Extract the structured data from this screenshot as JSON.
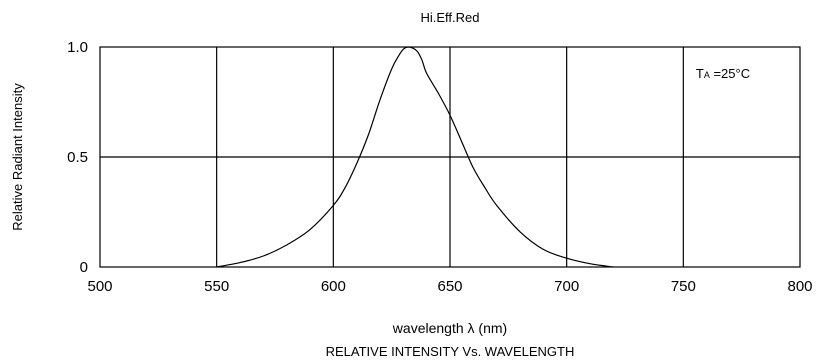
{
  "chart_data": {
    "type": "line",
    "title": "Hi.Eff.Red",
    "xlabel": "wavelength λ (nm)",
    "ylabel": "Relative Radiant Intensity",
    "caption": "RELATIVE INTENSITY Vs. WAVELENGTH",
    "annotation": {
      "main": "T",
      "sub": "A",
      "rest": " =25°C"
    },
    "xlim": [
      500,
      800
    ],
    "ylim": [
      0,
      1.0
    ],
    "x_ticks": [
      "500",
      "550",
      "600",
      "650",
      "700",
      "750",
      "800"
    ],
    "y_ticks": [
      {
        "value": 0,
        "label": "0"
      },
      {
        "value": 0.5,
        "label": "0.5"
      },
      {
        "value": 1.0,
        "label": "1.0"
      }
    ],
    "grid": true,
    "series": [
      {
        "x": [
          550,
          560,
          570,
          580,
          590,
          600,
          605,
          610,
          615,
          620,
          625,
          628,
          630,
          632,
          634,
          636,
          638,
          640,
          645,
          650,
          655,
          660,
          665,
          670,
          680,
          690,
          700,
          710,
          720
        ],
        "y": [
          0.0,
          0.02,
          0.05,
          0.1,
          0.17,
          0.28,
          0.36,
          0.47,
          0.6,
          0.76,
          0.9,
          0.96,
          0.99,
          1.0,
          0.995,
          0.98,
          0.94,
          0.88,
          0.79,
          0.69,
          0.57,
          0.45,
          0.36,
          0.28,
          0.16,
          0.08,
          0.04,
          0.015,
          0.0
        ]
      }
    ]
  }
}
